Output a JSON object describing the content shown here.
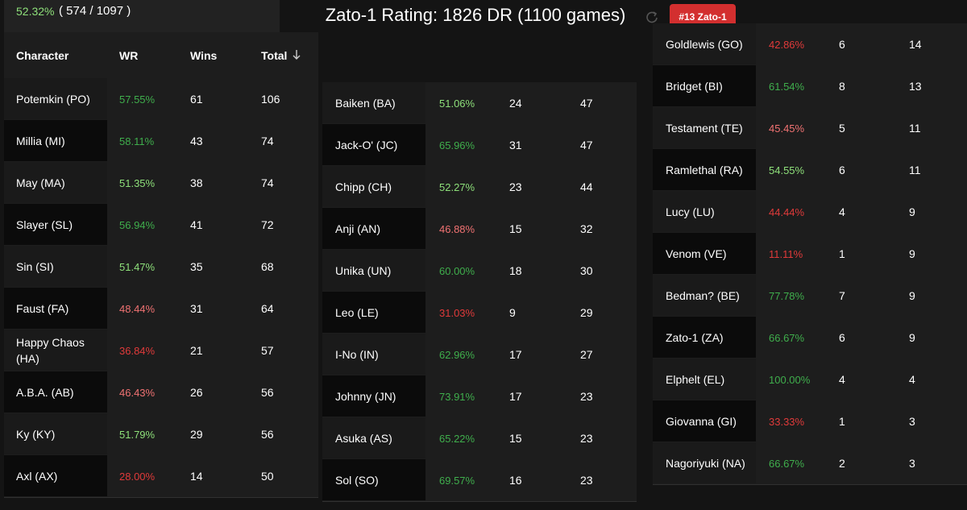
{
  "summary": {
    "winrate": "52.32%",
    "record": "( 574 / 1097 )"
  },
  "header": {
    "title": "Zato-1 Rating: 1826 DR (1100 games)",
    "badge": "#13 Zato-1"
  },
  "tables": [
    {
      "columns": [
        "Character",
        "WR",
        "Wins",
        "Total"
      ],
      "rows": [
        [
          "Potemkin (PO)",
          "57.55%",
          61,
          106
        ],
        [
          "Millia (MI)",
          "58.11%",
          43,
          74
        ],
        [
          "May (MA)",
          "51.35%",
          38,
          74
        ],
        [
          "Slayer (SL)",
          "56.94%",
          41,
          72
        ],
        [
          "Sin (SI)",
          "51.47%",
          35,
          68
        ],
        [
          "Faust (FA)",
          "48.44%",
          31,
          64
        ],
        [
          "Happy Chaos (HA)",
          "36.84%",
          21,
          57
        ],
        [
          "A.B.A. (AB)",
          "46.43%",
          26,
          56
        ],
        [
          "Ky (KY)",
          "51.79%",
          29,
          56
        ],
        [
          "Axl (AX)",
          "28.00%",
          14,
          50
        ]
      ]
    },
    {
      "rows": [
        [
          "Baiken (BA)",
          "51.06%",
          24,
          47
        ],
        [
          "Jack-O' (JC)",
          "65.96%",
          31,
          47
        ],
        [
          "Chipp (CH)",
          "52.27%",
          23,
          44
        ],
        [
          "Anji (AN)",
          "46.88%",
          15,
          32
        ],
        [
          "Unika (UN)",
          "60.00%",
          18,
          30
        ],
        [
          "Leo (LE)",
          "31.03%",
          9,
          29
        ],
        [
          "I-No (IN)",
          "62.96%",
          17,
          27
        ],
        [
          "Johnny (JN)",
          "73.91%",
          17,
          23
        ],
        [
          "Asuka (AS)",
          "65.22%",
          15,
          23
        ],
        [
          "Sol (SO)",
          "69.57%",
          16,
          23
        ]
      ]
    },
    {
      "rows": [
        [
          "Goldlewis (GO)",
          "42.86%",
          6,
          14
        ],
        [
          "Bridget (BI)",
          "61.54%",
          8,
          13
        ],
        [
          "Testament (TE)",
          "45.45%",
          5,
          11
        ],
        [
          "Ramlethal (RA)",
          "54.55%",
          6,
          11
        ],
        [
          "Lucy (LU)",
          "44.44%",
          4,
          9
        ],
        [
          "Venom (VE)",
          "11.11%",
          1,
          9
        ],
        [
          "Bedman? (BE)",
          "77.78%",
          7,
          9
        ],
        [
          "Zato-1 (ZA)",
          "66.67%",
          6,
          9
        ],
        [
          "Elphelt (EL)",
          "100.00%",
          4,
          4
        ],
        [
          "Giovanna (GI)",
          "33.33%",
          1,
          3
        ],
        [
          "Nagoriyuki (NA)",
          "66.67%",
          2,
          3
        ]
      ]
    }
  ]
}
